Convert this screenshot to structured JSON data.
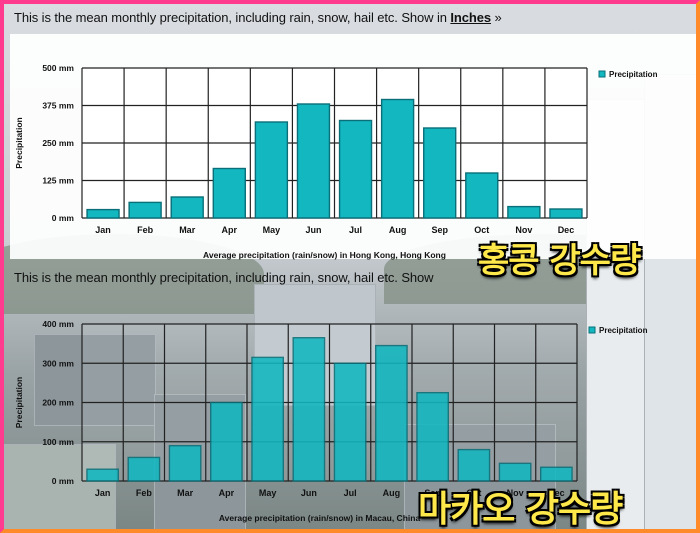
{
  "charts": [
    {
      "header": {
        "text": "This is the mean monthly precipitation, including rain, snow, hail etc. Show in",
        "link": "Inches",
        "suffix": " »"
      },
      "overlay_label": "홍콩 강수량",
      "legend": "Precipitation",
      "ylabel": "Precipitation",
      "xlabel": "Average precipitation (rain/snow) in Hong Kong, Hong Kong",
      "ytick_labels": [
        "0 mm",
        "125 mm",
        "250 mm",
        "375 mm",
        "500 mm"
      ]
    },
    {
      "header": {
        "text": "This is the mean monthly precipitation, including rain, snow, hail etc. Show",
        "link": "",
        "suffix": ""
      },
      "overlay_label": "마카오 강수량",
      "legend": "Precipitation",
      "ylabel": "Precipitation",
      "xlabel": "Average precipitation (rain/snow) in Macau, China",
      "ytick_labels": [
        "0 mm",
        "100 mm",
        "200 mm",
        "300 mm",
        "400 mm"
      ]
    }
  ],
  "chart_data": [
    {
      "type": "bar",
      "categories": [
        "Jan",
        "Feb",
        "Mar",
        "Apr",
        "May",
        "Jun",
        "Jul",
        "Aug",
        "Sep",
        "Oct",
        "Nov",
        "Dec"
      ],
      "series": [
        {
          "name": "Precipitation",
          "values": [
            28,
            52,
            70,
            165,
            320,
            380,
            325,
            395,
            300,
            150,
            38,
            30
          ]
        }
      ],
      "ylim": [
        0,
        500
      ],
      "yticks": [
        0,
        125,
        250,
        375,
        500
      ],
      "grid": true,
      "legend_position": "top-right",
      "bar_color": "#12b7c0"
    },
    {
      "type": "bar",
      "categories": [
        "Jan",
        "Feb",
        "Mar",
        "Apr",
        "May",
        "Jun",
        "Jul",
        "Aug",
        "Sep",
        "Oct",
        "Nov",
        "Dec"
      ],
      "series": [
        {
          "name": "Precipitation",
          "values": [
            30,
            60,
            90,
            200,
            315,
            365,
            300,
            345,
            225,
            80,
            45,
            35
          ]
        }
      ],
      "ylim": [
        0,
        400
      ],
      "yticks": [
        0,
        100,
        200,
        300,
        400
      ],
      "grid": true,
      "legend_position": "top-right",
      "bar_color": "#12b7c0"
    }
  ]
}
